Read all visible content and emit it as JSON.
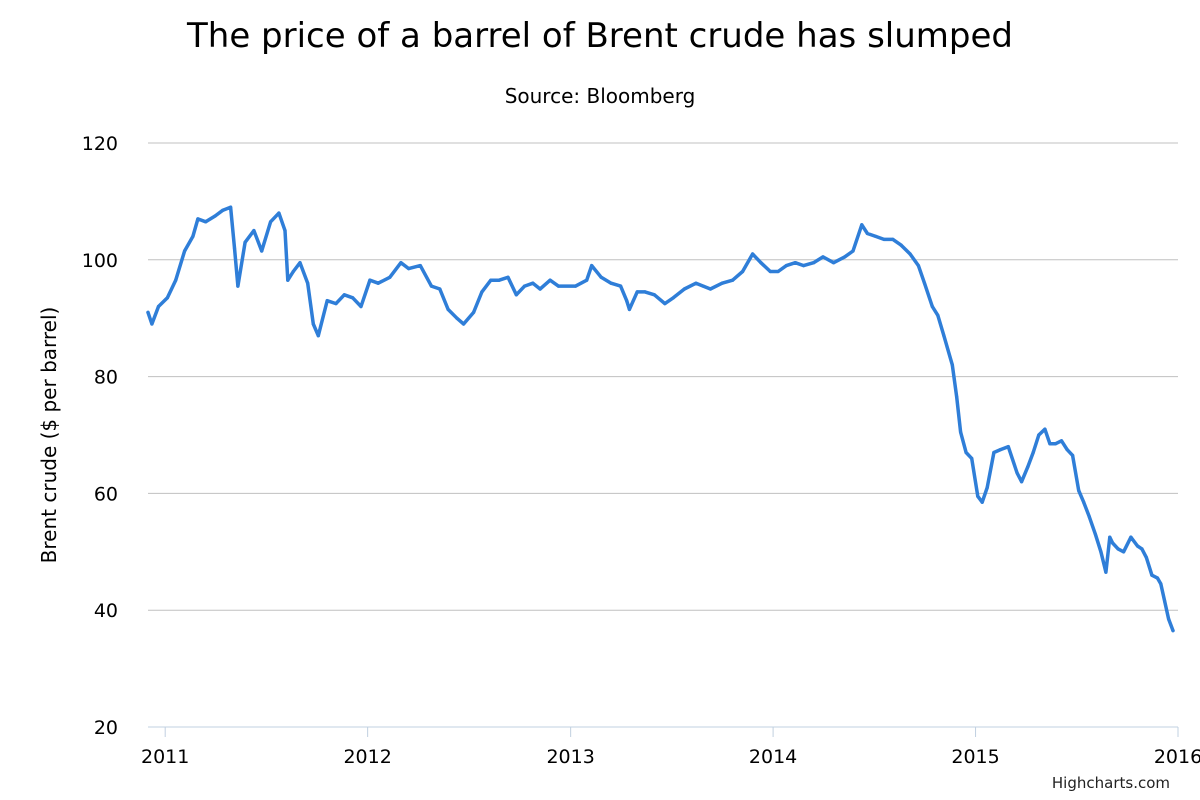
{
  "chart_data": {
    "type": "line",
    "title": "The price of a barrel of Brent crude has slumped",
    "subtitle": "Source: Bloomberg",
    "xlabel": "",
    "ylabel": "Brent crude ($ per barrel)",
    "ylim": [
      20,
      120
    ],
    "yticks": [
      20,
      40,
      60,
      80,
      100,
      120
    ],
    "xlim": [
      "2010-12-01",
      "2016-01-01"
    ],
    "xticks": [
      "2011",
      "2012",
      "2013",
      "2014",
      "2015",
      "2016"
    ],
    "grid": true,
    "legend": "none",
    "series": [
      {
        "color": "#2f7ed8",
        "x": [
          "2010-12-01",
          "2010-12-08",
          "2010-12-20",
          "2011-01-05",
          "2011-01-20",
          "2011-02-05",
          "2011-02-20",
          "2011-03-01",
          "2011-03-15",
          "2011-04-01",
          "2011-04-15",
          "2011-04-29",
          "2011-05-06",
          "2011-05-12",
          "2011-05-25",
          "2011-06-10",
          "2011-06-24",
          "2011-07-10",
          "2011-07-25",
          "2011-08-05",
          "2011-08-10",
          "2011-08-20",
          "2011-09-01",
          "2011-09-15",
          "2011-09-25",
          "2011-10-04",
          "2011-10-20",
          "2011-11-05",
          "2011-11-20",
          "2011-12-05",
          "2011-12-20",
          "2012-01-05",
          "2012-01-20",
          "2012-02-10",
          "2012-03-01",
          "2012-03-15",
          "2012-04-05",
          "2012-04-25",
          "2012-05-10",
          "2012-05-25",
          "2012-06-10",
          "2012-06-22",
          "2012-07-10",
          "2012-07-25",
          "2012-08-10",
          "2012-08-25",
          "2012-09-10",
          "2012-09-25",
          "2012-10-10",
          "2012-10-25",
          "2012-11-07",
          "2012-11-25",
          "2012-12-10",
          "2013-01-10",
          "2013-01-30",
          "2013-02-08",
          "2013-02-25",
          "2013-03-15",
          "2013-04-01",
          "2013-04-12",
          "2013-04-17",
          "2013-05-01",
          "2013-05-15",
          "2013-06-01",
          "2013-06-20",
          "2013-07-05",
          "2013-07-25",
          "2013-08-15",
          "2013-08-28",
          "2013-09-10",
          "2013-10-01",
          "2013-10-20",
          "2013-11-07",
          "2013-11-25",
          "2013-12-10",
          "2013-12-27",
          "2014-01-10",
          "2014-01-25",
          "2014-02-10",
          "2014-02-25",
          "2014-03-15",
          "2014-04-01",
          "2014-04-20",
          "2014-05-10",
          "2014-05-25",
          "2014-06-10",
          "2014-06-20",
          "2014-07-05",
          "2014-07-20",
          "2014-08-05",
          "2014-08-20",
          "2014-09-05",
          "2014-09-20",
          "2014-10-01",
          "2014-10-15",
          "2014-10-25",
          "2014-11-05",
          "2014-11-20",
          "2014-11-28",
          "2014-12-05",
          "2014-12-15",
          "2014-12-25",
          "2015-01-05",
          "2015-01-13",
          "2015-01-22",
          "2015-02-03",
          "2015-02-15",
          "2015-03-01",
          "2015-03-17",
          "2015-03-25",
          "2015-04-05",
          "2015-04-15",
          "2015-04-25",
          "2015-05-06",
          "2015-05-15",
          "2015-05-25",
          "2015-06-05",
          "2015-06-15",
          "2015-06-25",
          "2015-07-06",
          "2015-07-15",
          "2015-07-25",
          "2015-08-05",
          "2015-08-15",
          "2015-08-24",
          "2015-08-31",
          "2015-09-05",
          "2015-09-15",
          "2015-09-25",
          "2015-10-08",
          "2015-10-20",
          "2015-10-28",
          "2015-11-05",
          "2015-11-15",
          "2015-11-25",
          "2015-12-01",
          "2015-12-08",
          "2015-12-15",
          "2015-12-23"
        ],
        "y": [
          91.0,
          89.0,
          92.0,
          93.5,
          96.5,
          101.5,
          104.0,
          107.0,
          106.5,
          107.5,
          108.5,
          109.0,
          102.0,
          95.5,
          103.0,
          105.0,
          101.5,
          106.5,
          108.0,
          105.0,
          96.5,
          98.0,
          99.5,
          96.0,
          89.0,
          87.0,
          93.0,
          92.5,
          94.0,
          93.5,
          92.0,
          96.5,
          96.0,
          97.0,
          99.5,
          98.5,
          99.0,
          95.5,
          95.0,
          91.5,
          90.0,
          89.0,
          91.0,
          94.5,
          96.5,
          96.5,
          97.0,
          94.0,
          95.5,
          96.0,
          95.0,
          96.5,
          95.5,
          95.5,
          96.5,
          99.0,
          97.0,
          96.0,
          95.5,
          93.0,
          91.5,
          94.5,
          94.5,
          94.0,
          92.5,
          93.5,
          95.0,
          96.0,
          95.5,
          95.0,
          96.0,
          96.5,
          98.0,
          101.0,
          99.5,
          98.0,
          98.0,
          99.0,
          99.5,
          99.0,
          99.5,
          100.5,
          99.5,
          100.5,
          101.5,
          106.0,
          104.5,
          104.0,
          103.5,
          103.5,
          102.5,
          101.0,
          99.0,
          96.0,
          92.0,
          90.5,
          87.0,
          82.0,
          76.5,
          70.5,
          67.0,
          66.0,
          59.5,
          58.5,
          61.0,
          67.0,
          67.5,
          68.0,
          63.5,
          62.0,
          64.5,
          67.0,
          70.0,
          71.0,
          68.5,
          68.5,
          69.0,
          67.5,
          66.5,
          60.5,
          58.5,
          56.0,
          53.0,
          50.0,
          46.5,
          52.5,
          51.5,
          50.5,
          50.0,
          52.5,
          51.0,
          50.5,
          49.0,
          46.0,
          45.5,
          44.5,
          41.5,
          38.5,
          36.5
        ]
      }
    ],
    "credits": "Highcharts.com"
  }
}
